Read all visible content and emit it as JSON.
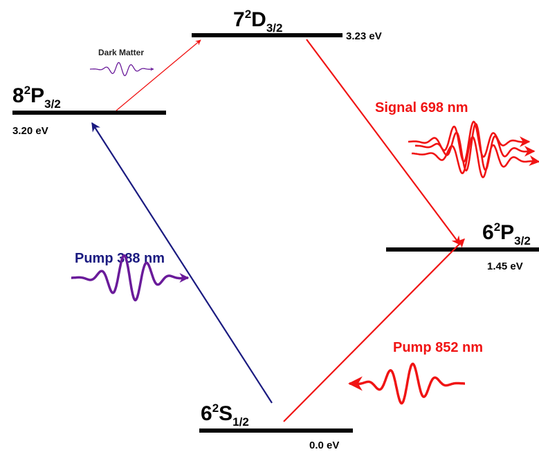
{
  "levels": [
    {
      "n": "7",
      "mult": "2",
      "L": "D",
      "J": "3/2",
      "energy": "3.23 eV"
    },
    {
      "n": "8",
      "mult": "2",
      "L": "P",
      "J": "3/2",
      "energy": "3.20 eV"
    },
    {
      "n": "6",
      "mult": "2",
      "L": "P",
      "J": "3/2",
      "energy": "1.45 eV"
    },
    {
      "n": "6",
      "mult": "2",
      "L": "S",
      "J": "1/2",
      "energy": "0.0 eV"
    }
  ],
  "transitions": [
    {
      "label": "Dark Matter"
    },
    {
      "label": "Pump 388 nm"
    },
    {
      "label": "Signal 698 nm"
    },
    {
      "label": "Pump 852 nm"
    }
  ]
}
